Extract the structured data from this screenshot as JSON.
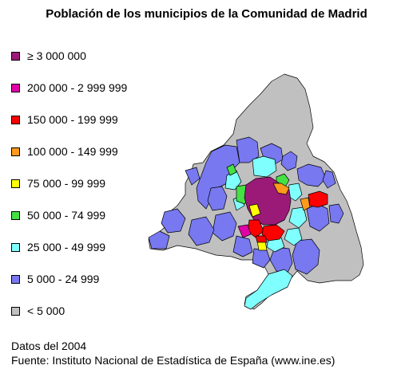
{
  "title": "Población de los municipios de la Comunidad de Madrid",
  "legend": [
    {
      "label": "≥ 3 000 000",
      "color": "#9b1a78"
    },
    {
      "label": "200 000 - 2 999 999",
      "color": "#e000a8"
    },
    {
      "label": "150 000 - 199 999",
      "color": "#ff0000"
    },
    {
      "label": "100 000 - 149 999",
      "color": "#ff9a1a"
    },
    {
      "label": "75 000 - 99 999",
      "color": "#ffff00"
    },
    {
      "label": "50 000 - 74 999",
      "color": "#44e044"
    },
    {
      "label": "25 000 - 49 999",
      "color": "#80ffff"
    },
    {
      "label": "5 000 - 24 999",
      "color": "#7878f0"
    },
    {
      "label": "< 5 000",
      "color": "#c0c0c0"
    }
  ],
  "footer": {
    "date": "Datos del 2004",
    "source": "Fuente: Instituto Nacional de Estadística de España (www.ine.es)"
  }
}
